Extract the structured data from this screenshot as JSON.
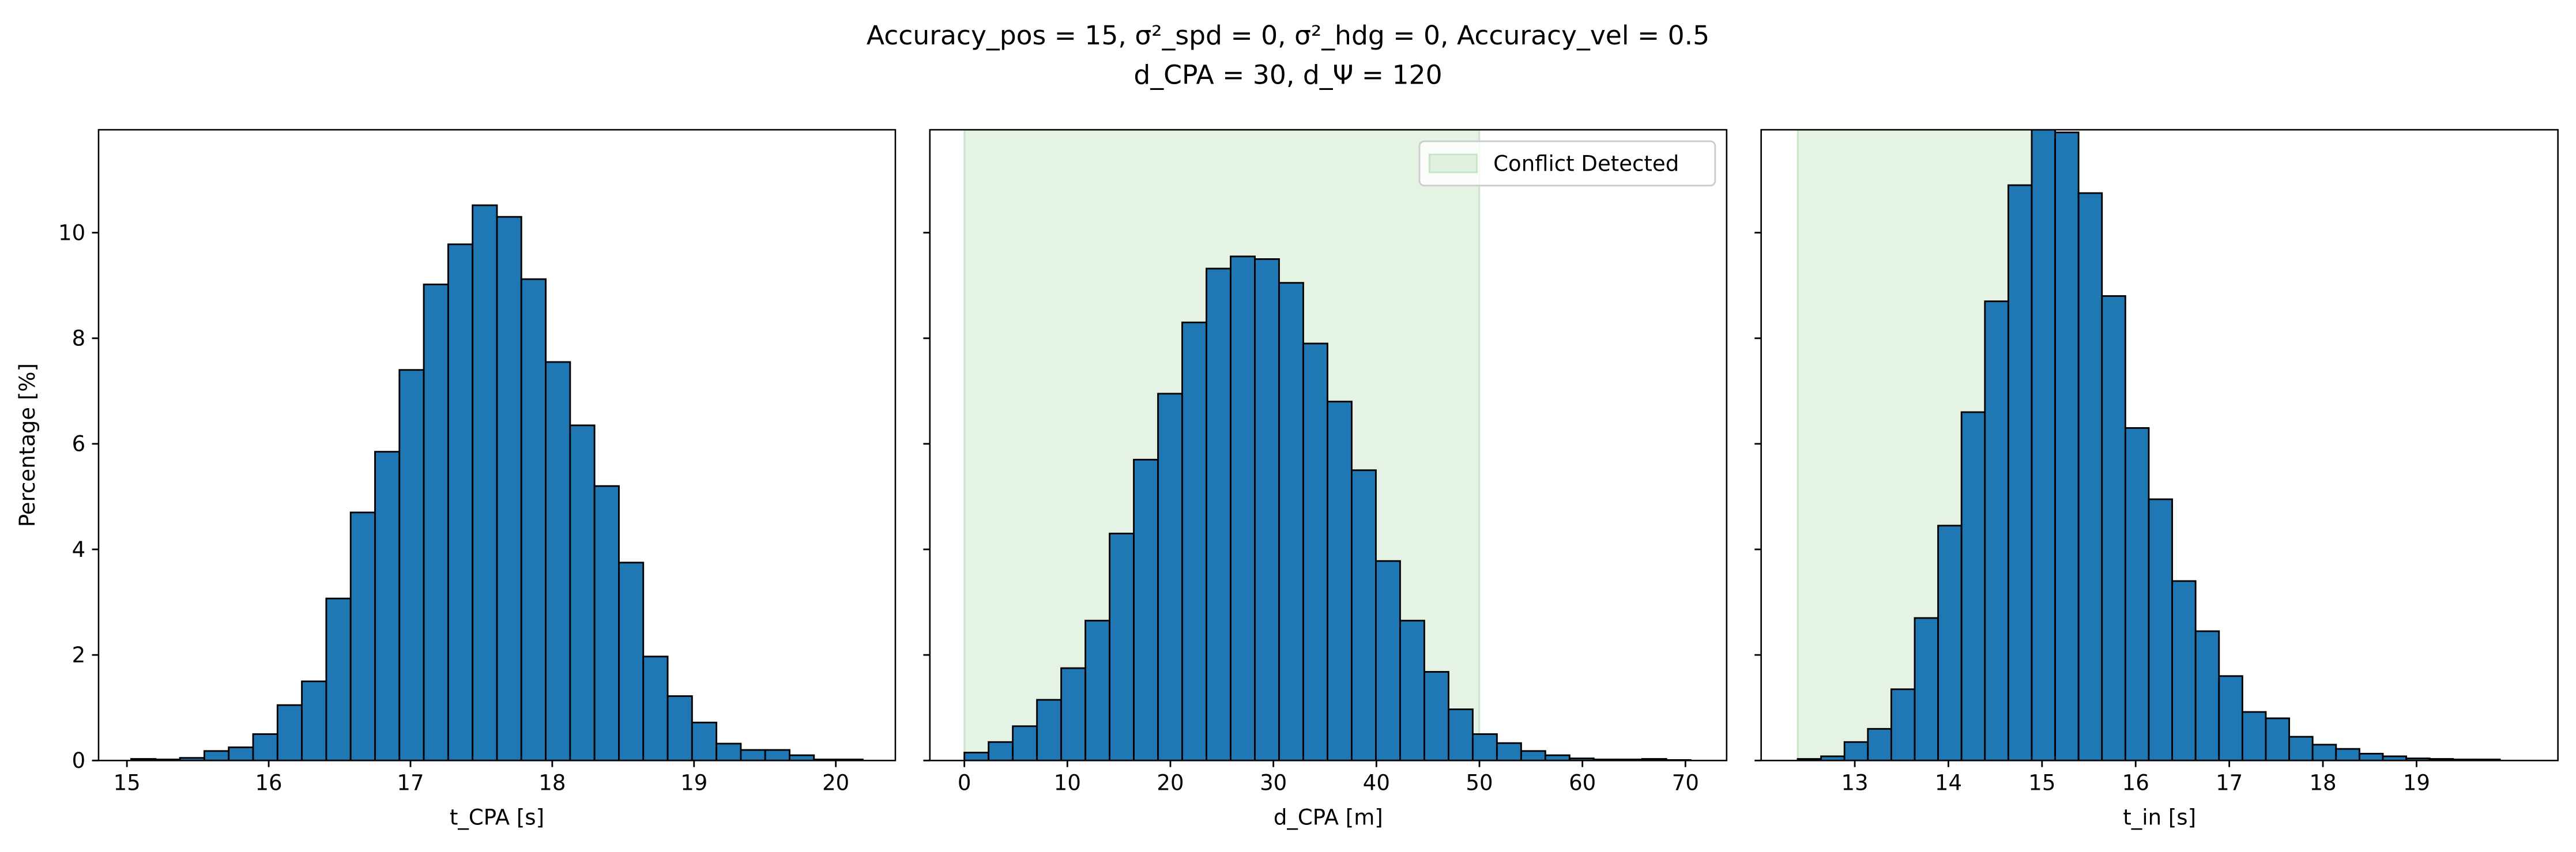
{
  "suptitle": [
    "Accuracy_pos = 15, σ²_spd = 0, σ²_hdg = 0, Accuracy_vel = 0.5",
    "d_CPA = 30, d_Ψ = 120"
  ],
  "chart_data": [
    {
      "type": "histogram",
      "xlabel": "t_CPA [s]",
      "ylabel": "Percentage [%]",
      "color": "#1f77b4",
      "bins": [
        15.03,
        15.202,
        15.374,
        15.546,
        15.718,
        15.89,
        16.062,
        16.234,
        16.406,
        16.578,
        16.75,
        16.922,
        17.094,
        17.266,
        17.438,
        17.61,
        17.782,
        17.954,
        18.126,
        18.298,
        18.47,
        18.642,
        18.814,
        18.986,
        19.158,
        19.33,
        19.502,
        19.674,
        19.846,
        20.018,
        20.19
      ],
      "values": [
        0.03,
        0.02,
        0.05,
        0.18,
        0.25,
        0.5,
        1.05,
        1.5,
        3.07,
        4.7,
        5.85,
        7.4,
        9.02,
        9.78,
        10.52,
        10.3,
        9.12,
        7.55,
        6.35,
        5.2,
        3.75,
        1.97,
        1.22,
        0.72,
        0.32,
        0.2,
        0.2,
        0.1,
        0.02,
        0.02
      ],
      "xlim": [
        14.8,
        20.42
      ],
      "xticks": [
        15,
        16,
        17,
        18,
        19,
        20
      ],
      "ylim": [
        0,
        11.95
      ],
      "yticks": [
        0,
        2,
        4,
        6,
        8,
        10
      ]
    },
    {
      "type": "histogram",
      "xlabel": "d_CPA [m]",
      "color": "#1f77b4",
      "bins": [
        0,
        2.35,
        4.7,
        7.05,
        9.4,
        11.75,
        14.1,
        16.45,
        18.8,
        21.15,
        23.5,
        25.85,
        28.2,
        30.55,
        32.9,
        35.25,
        37.6,
        39.95,
        42.3,
        44.65,
        47,
        49.35,
        51.7,
        54.05,
        56.4,
        58.75,
        61.1,
        63.45,
        65.8,
        68.15,
        70.5
      ],
      "values": [
        0.15,
        0.35,
        0.65,
        1.15,
        1.75,
        2.65,
        4.3,
        5.7,
        6.95,
        8.3,
        9.32,
        9.55,
        9.5,
        9.05,
        7.9,
        6.8,
        5.5,
        3.78,
        2.65,
        1.68,
        0.97,
        0.5,
        0.33,
        0.18,
        0.1,
        0.04,
        0.02,
        0.02,
        0.03,
        0.01
      ],
      "xlim": [
        -3.35,
        74
      ],
      "xticks": [
        0,
        10,
        20,
        30,
        40,
        50,
        60,
        70
      ],
      "ylim": [
        0,
        11.95
      ],
      "yticks": [
        0,
        2,
        4,
        6,
        8,
        10
      ],
      "span": {
        "name": "Conflict Detected",
        "color": "#2ca02c",
        "range": [
          0,
          50
        ]
      },
      "legend": "upper right"
    },
    {
      "type": "histogram",
      "xlabel": "t_in [s]",
      "color": "#1f77b4",
      "bins": [
        12.39,
        12.64,
        12.89,
        13.14,
        13.39,
        13.64,
        13.89,
        14.14,
        14.39,
        14.64,
        14.89,
        15.14,
        15.39,
        15.64,
        15.89,
        16.14,
        16.39,
        16.64,
        16.89,
        17.14,
        17.39,
        17.64,
        17.89,
        18.14,
        18.39,
        18.64,
        18.89,
        19.14,
        19.39,
        19.64,
        19.89
      ],
      "values": [
        0.03,
        0.08,
        0.35,
        0.6,
        1.35,
        2.7,
        4.45,
        6.6,
        8.7,
        10.9,
        12.5,
        11.9,
        10.75,
        8.8,
        6.3,
        4.95,
        3.4,
        2.45,
        1.6,
        0.92,
        0.8,
        0.45,
        0.3,
        0.22,
        0.13,
        0.08,
        0.04,
        0.03,
        0.02,
        0.02
      ],
      "xlim": [
        12,
        20.51
      ],
      "xticks": [
        13,
        14,
        15,
        16,
        17,
        18,
        19
      ],
      "ylim": [
        0,
        11.95
      ],
      "yticks": [
        0,
        2,
        4,
        6,
        8,
        10
      ],
      "span": {
        "color": "#2ca02c",
        "range": [
          12.39,
          15.1
        ]
      }
    }
  ]
}
